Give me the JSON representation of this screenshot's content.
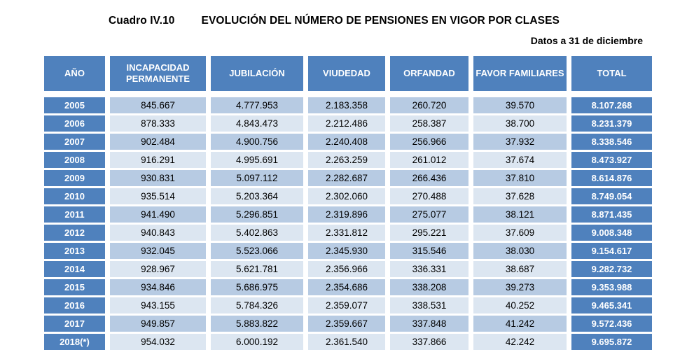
{
  "title": {
    "label": "Cuadro IV.10",
    "text": "EVOLUCIÓN DEL NÚMERO DE PENSIONES EN VIGOR POR CLASES"
  },
  "subtitle": "Datos a 31 de diciembre",
  "colors": {
    "header_blue": "#4F81BD",
    "row_dark": "#B7CBE3",
    "row_light": "#DCE6F1",
    "header_text": "#FFFFFF",
    "body_text": "#000000"
  },
  "table": {
    "columns": [
      "AÑO",
      "INCAPACIDAD PERMANENTE",
      "JUBILACIÓN",
      "VIUDEDAD",
      "ORFANDAD",
      "FAVOR FAMILIARES",
      "TOTAL"
    ],
    "rows": [
      {
        "year": "2005",
        "values": [
          "845.667",
          "4.777.953",
          "2.183.358",
          "260.720",
          "39.570"
        ],
        "total": "8.107.268"
      },
      {
        "year": "2006",
        "values": [
          "878.333",
          "4.843.473",
          "2.212.486",
          "258.387",
          "38.700"
        ],
        "total": "8.231.379"
      },
      {
        "year": "2007",
        "values": [
          "902.484",
          "4.900.756",
          "2.240.408",
          "256.966",
          "37.932"
        ],
        "total": "8.338.546"
      },
      {
        "year": "2008",
        "values": [
          "916.291",
          "4.995.691",
          "2.263.259",
          "261.012",
          "37.674"
        ],
        "total": "8.473.927"
      },
      {
        "year": "2009",
        "values": [
          "930.831",
          "5.097.112",
          "2.282.687",
          "266.436",
          "37.810"
        ],
        "total": "8.614.876"
      },
      {
        "year": "2010",
        "values": [
          "935.514",
          "5.203.364",
          "2.302.060",
          "270.488",
          "37.628"
        ],
        "total": "8.749.054"
      },
      {
        "year": "2011",
        "values": [
          "941.490",
          "5.296.851",
          "2.319.896",
          "275.077",
          "38.121"
        ],
        "total": "8.871.435"
      },
      {
        "year": "2012",
        "values": [
          "940.843",
          "5.402.863",
          "2.331.812",
          "295.221",
          "37.609"
        ],
        "total": "9.008.348"
      },
      {
        "year": "2013",
        "values": [
          "932.045",
          "5.523.066",
          "2.345.930",
          "315.546",
          "38.030"
        ],
        "total": "9.154.617"
      },
      {
        "year": "2014",
        "values": [
          "928.967",
          "5.621.781",
          "2.356.966",
          "336.331",
          "38.687"
        ],
        "total": "9.282.732"
      },
      {
        "year": "2015",
        "values": [
          "934.846",
          "5.686.975",
          "2.354.686",
          "338.208",
          "39.273"
        ],
        "total": "9.353.988"
      },
      {
        "year": "2016",
        "values": [
          "943.155",
          "5.784.326",
          "2.359.077",
          "338.531",
          "40.252"
        ],
        "total": "9.465.341"
      },
      {
        "year": "2017",
        "values": [
          "949.857",
          "5.883.822",
          "2.359.667",
          "337.848",
          "41.242"
        ],
        "total": "9.572.436"
      },
      {
        "year": "2018(*)",
        "values": [
          "954.032",
          "6.000.192",
          "2.361.540",
          "337.866",
          "42.242"
        ],
        "total": "9.695.872"
      }
    ]
  }
}
